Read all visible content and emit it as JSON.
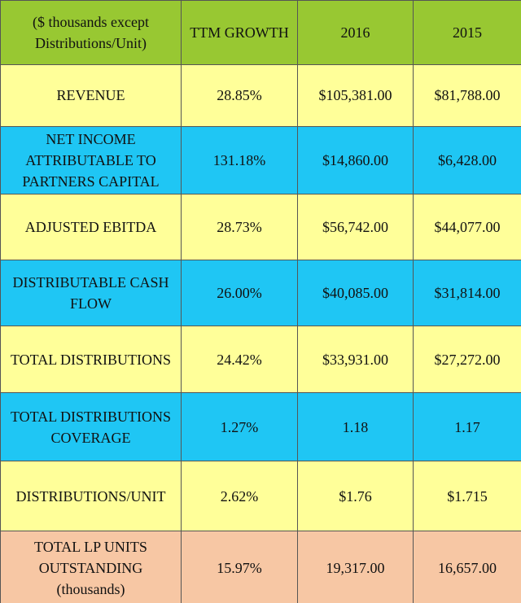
{
  "table": {
    "header": [
      "($ thousands except Distributions/Unit)",
      "TTM GROWTH",
      "2016",
      "2015"
    ],
    "rows": [
      [
        "REVENUE",
        "28.85%",
        "$105,381.00",
        "$81,788.00"
      ],
      [
        "NET INCOME ATTRIBUTABLE TO PARTNERS CAPITAL",
        "131.18%",
        "$14,860.00",
        "$6,428.00"
      ],
      [
        "ADJUSTED EBITDA",
        "28.73%",
        "$56,742.00",
        "$44,077.00"
      ],
      [
        "DISTRIBUTABLE CASH FLOW",
        "26.00%",
        "$40,085.00",
        "$31,814.00"
      ],
      [
        "TOTAL DISTRIBUTIONS",
        "24.42%",
        "$33,931.00",
        "$27,272.00"
      ],
      [
        "TOTAL DISTRIBUTIONS COVERAGE",
        "1.27%",
        "1.18",
        "1.17"
      ],
      [
        "DISTRIBUTIONS/UNIT",
        "2.62%",
        "$1.76",
        "$1.715"
      ],
      [
        "TOTAL LP UNITS OUTSTANDING (thousands)",
        "15.97%",
        "19,317.00",
        "16,657.00"
      ]
    ]
  }
}
